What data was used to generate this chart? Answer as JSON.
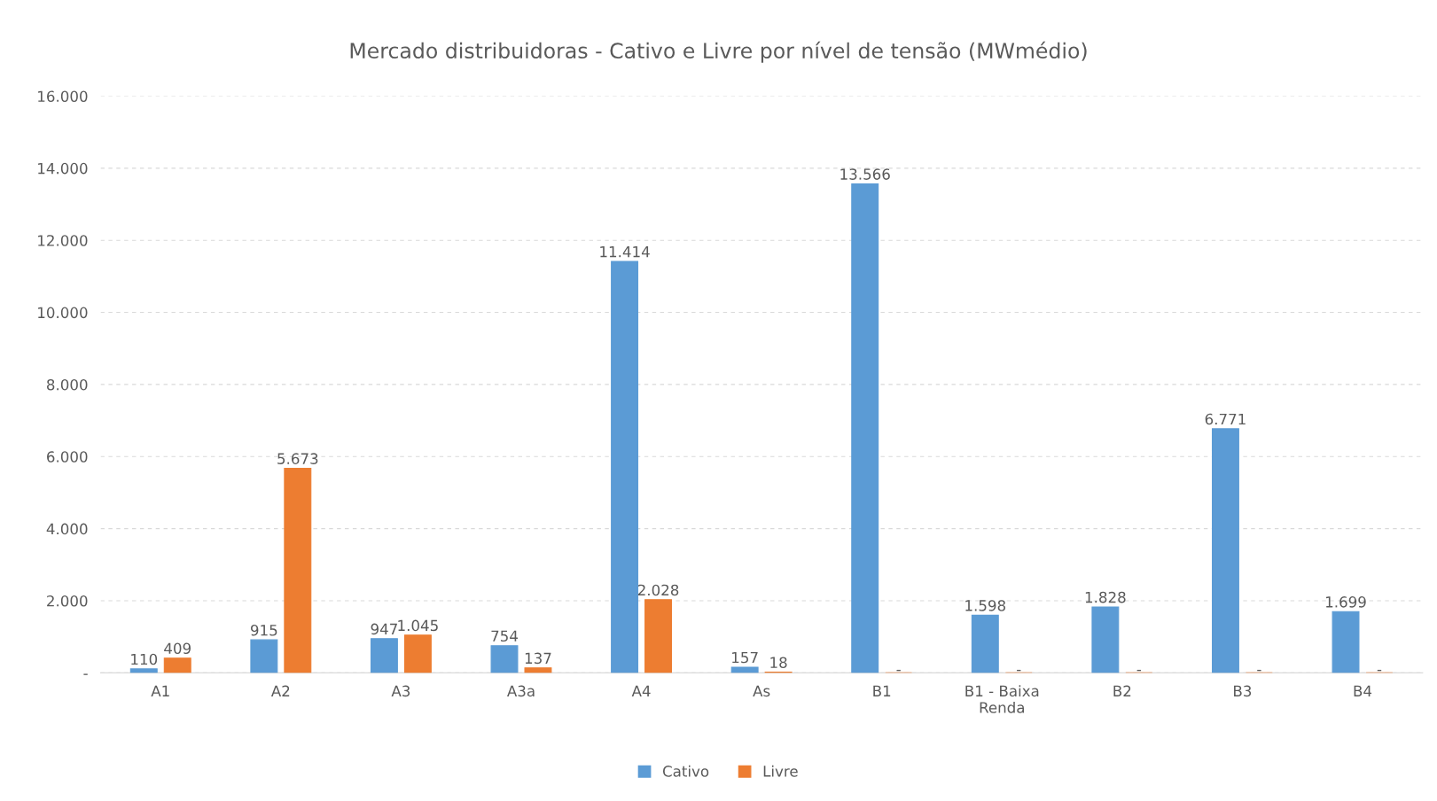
{
  "chart_data": {
    "type": "bar",
    "title": "Mercado distribuidoras - Cativo e Livre por nível de tensão (MWmédio)",
    "categories": [
      "A1",
      "A2",
      "A3",
      "A3a",
      "A4",
      "As",
      "B1",
      "B1 - Baixa\nRenda",
      "B2",
      "B3",
      "B4"
    ],
    "series": [
      {
        "name": "Cativo",
        "color": "#5b9bd5",
        "values": [
          110,
          915,
          947,
          754,
          11414,
          157,
          13566,
          1598,
          1828,
          6771,
          1699
        ],
        "value_labels": [
          "110",
          "915",
          "947",
          "754",
          "11.414",
          "157",
          "13.566",
          "1.598",
          "1.828",
          "6.771",
          "1.699"
        ]
      },
      {
        "name": "Livre",
        "color": "#ed7d31",
        "values": [
          409,
          5673,
          1045,
          137,
          2028,
          18,
          0,
          0,
          0,
          0,
          0
        ],
        "value_labels": [
          "409",
          "5.673",
          "1.045",
          "137",
          "2.028",
          "18",
          "-",
          "-",
          "-",
          "-",
          "-"
        ]
      }
    ],
    "ylim": [
      0,
      16000
    ],
    "yticks": [
      {
        "value": 0,
        "label": "-"
      },
      {
        "value": 2000,
        "label": "2.000"
      },
      {
        "value": 4000,
        "label": "4.000"
      },
      {
        "value": 6000,
        "label": "6.000"
      },
      {
        "value": 8000,
        "label": "8.000"
      },
      {
        "value": 10000,
        "label": "10.000"
      },
      {
        "value": 12000,
        "label": "12.000"
      },
      {
        "value": 14000,
        "label": "14.000"
      },
      {
        "value": 16000,
        "label": "16.000"
      }
    ],
    "grid": "y",
    "legend": "bottom"
  }
}
